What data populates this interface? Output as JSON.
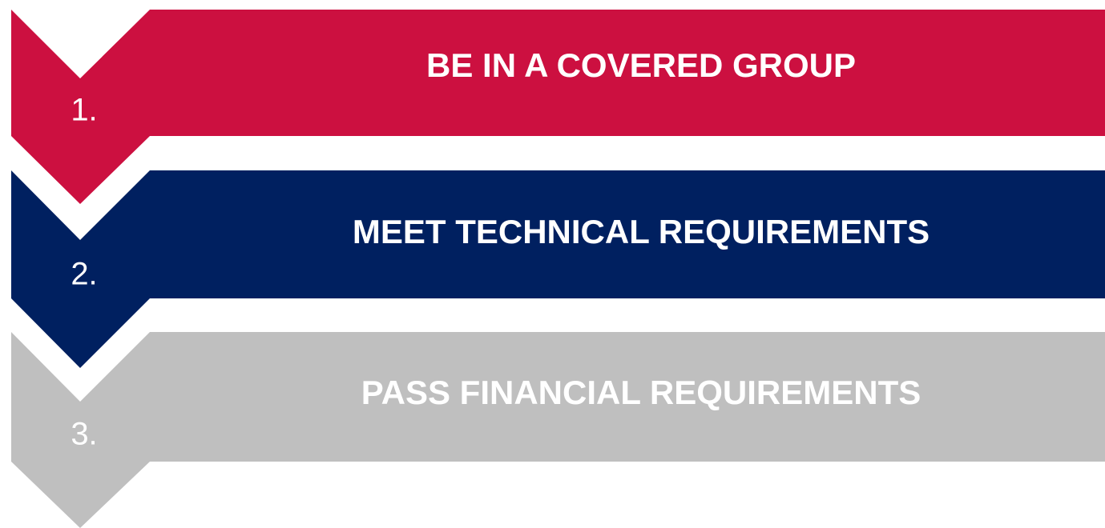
{
  "steps": [
    {
      "number": "1.",
      "title": "BE IN A COVERED GROUP"
    },
    {
      "number": "2.",
      "title": "MEET TECHNICAL REQUIREMENTS"
    },
    {
      "number": "3.",
      "title": "PASS FINANCIAL REQUIREMENTS"
    }
  ]
}
